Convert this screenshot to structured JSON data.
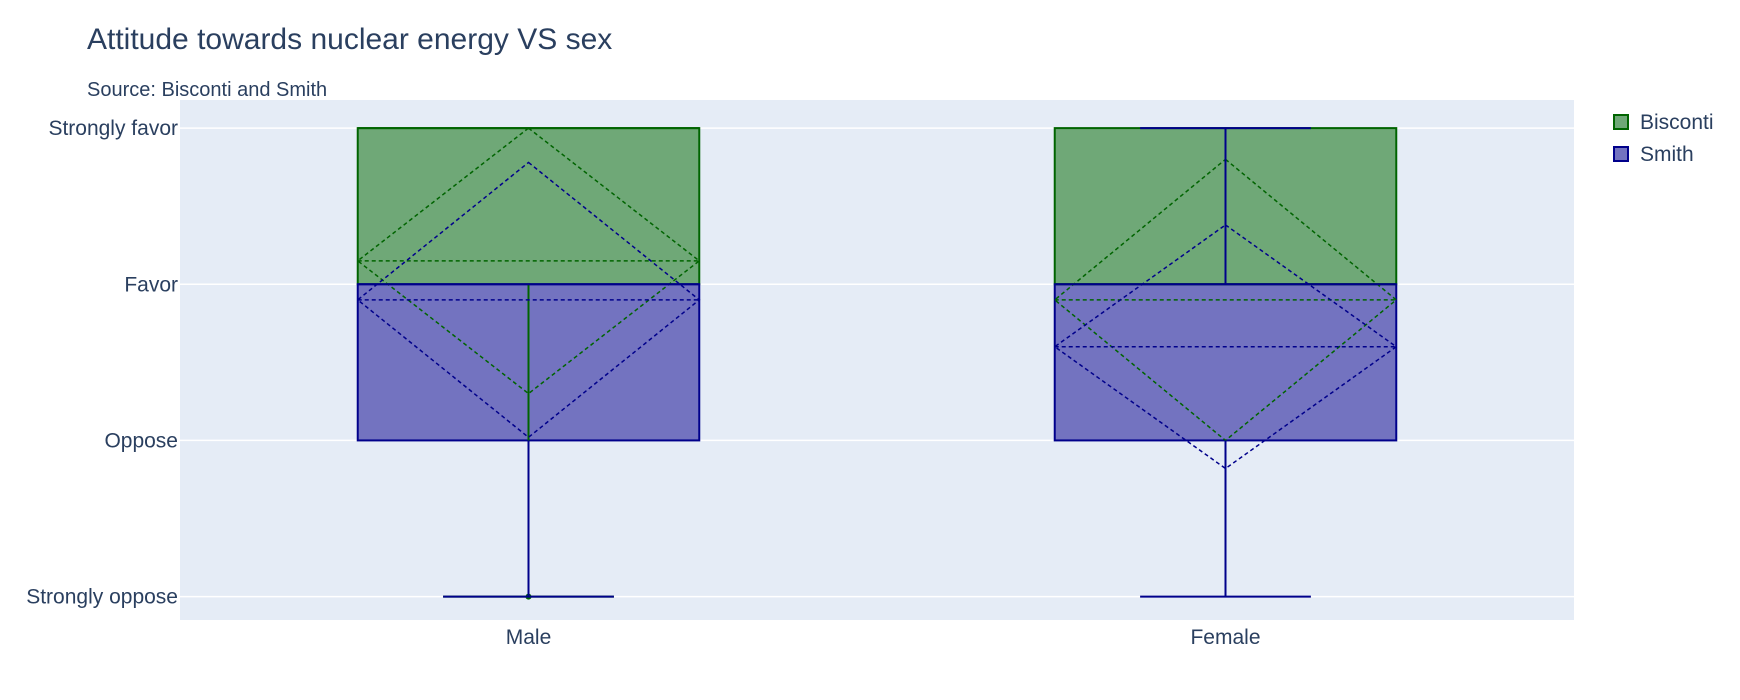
{
  "chart_data": {
    "type": "box",
    "title": "Attitude towards nuclear energy VS sex",
    "subtitle": "Source: Bisconti and Smith",
    "categories": [
      "Male",
      "Female"
    ],
    "y_categories": [
      "Strongly oppose",
      "Oppose",
      "Favor",
      "Strongly favor"
    ],
    "yrange": [
      0.85,
      4.18
    ],
    "grid": true,
    "legend_position": "top-right",
    "boxmean": "sd",
    "series": [
      {
        "name": "Bisconti",
        "fill_color": "#6fa877",
        "line_color": "#006400",
        "boxes": [
          {
            "category": "Male",
            "min": 1,
            "q1": 3,
            "median": 4,
            "q3": 4,
            "max": 4,
            "mean": 3.15,
            "sd": 0.85,
            "outliers": [
              1
            ]
          },
          {
            "category": "Female",
            "min": 3,
            "q1": 3,
            "median": 3,
            "q3": 4,
            "max": 4,
            "mean": 2.9,
            "sd": 0.9,
            "outliers": []
          }
        ]
      },
      {
        "name": "Smith",
        "fill_color": "#7373c0",
        "line_color": "#00008b",
        "boxes": [
          {
            "category": "Male",
            "min": 1,
            "q1": 2,
            "median": 3,
            "q3": 3,
            "max": 3,
            "mean": 2.9,
            "sd": 0.88,
            "outliers": []
          },
          {
            "category": "Female",
            "min": 1,
            "q1": 2,
            "median": 3,
            "q3": 3,
            "max": 4,
            "mean": 2.6,
            "sd": 0.78,
            "outliers": []
          }
        ]
      }
    ],
    "overlap_color": "#36527f"
  }
}
